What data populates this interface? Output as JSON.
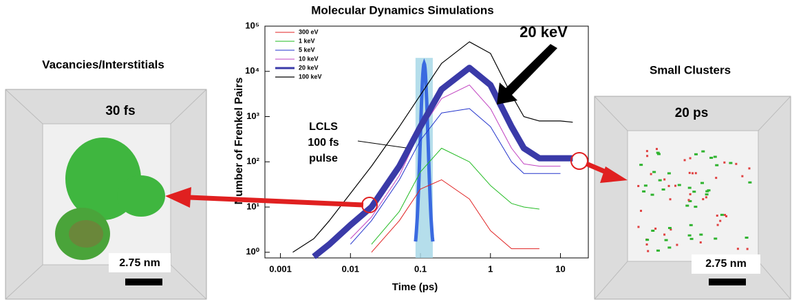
{
  "chart_data": {
    "type": "line",
    "title": "Molecular Dynamics Simulations",
    "x_label": "Time  (ps)",
    "y_label": "Number of Frenkel Pairs",
    "log_x": true,
    "log_y": true,
    "xlim": [
      0.0006,
      25
    ],
    "ylim": [
      0.75,
      100000
    ],
    "xticks": [
      0.001,
      0.01,
      0.1,
      1,
      10
    ],
    "yticks": [
      {
        "value": 1,
        "label": "10⁰"
      },
      {
        "value": 10,
        "label": "10¹"
      },
      {
        "value": 100,
        "label": "10²"
      },
      {
        "value": 1000,
        "label": "10³"
      },
      {
        "value": 10000,
        "label": "10⁴"
      },
      {
        "value": 100000,
        "label": "10⁵"
      }
    ],
    "x": [
      0.0015,
      0.003,
      0.005,
      0.01,
      0.02,
      0.05,
      0.1,
      0.2,
      0.5,
      1,
      2,
      3,
      5,
      10,
      15
    ],
    "series": [
      {
        "name": "300 eV",
        "color": "#e02020",
        "width": 1,
        "values": [
          null,
          null,
          null,
          null,
          1,
          5,
          25,
          40,
          15,
          3,
          1.2,
          1.2,
          1.2,
          null,
          null
        ]
      },
      {
        "name": "1 keV",
        "color": "#22bb22",
        "width": 1,
        "values": [
          null,
          null,
          null,
          null,
          1.5,
          8,
          60,
          200,
          100,
          30,
          12,
          10,
          9,
          null,
          null
        ]
      },
      {
        "name": "5 keV",
        "color": "#2233cc",
        "width": 1,
        "values": [
          null,
          null,
          null,
          1.5,
          5,
          40,
          300,
          1200,
          1500,
          600,
          100,
          55,
          55,
          55,
          null
        ]
      },
      {
        "name": "10 keV",
        "color": "#c040c0",
        "width": 1,
        "values": [
          null,
          null,
          null,
          2,
          6,
          50,
          500,
          2500,
          5000,
          1500,
          200,
          90,
          80,
          80,
          null
        ]
      },
      {
        "name": "20 keV",
        "color": "#3a3aa8",
        "width": 9,
        "values": [
          null,
          0.8,
          1.5,
          4,
          10,
          80,
          600,
          4000,
          12000,
          5000,
          600,
          200,
          120,
          120,
          120
        ]
      },
      {
        "name": "100 keV",
        "color": "#000000",
        "width": 1.2,
        "values": [
          1,
          2,
          5,
          20,
          80,
          600,
          3000,
          15000,
          45000,
          25000,
          3000,
          1000,
          800,
          800,
          750
        ]
      }
    ],
    "pulse_band": [
      0.085,
      0.15
    ],
    "pulse_peak": 15000,
    "annotations": [
      "20 keV",
      "LCLS",
      "100 fs",
      "pulse"
    ]
  },
  "panels": [
    {
      "title": "Vacancies/Interstitials",
      "time": "30 fs",
      "scale": "2.75 nm"
    },
    {
      "title": "Small Clusters",
      "time": "20 ps",
      "scale": "2.75 nm"
    }
  ]
}
